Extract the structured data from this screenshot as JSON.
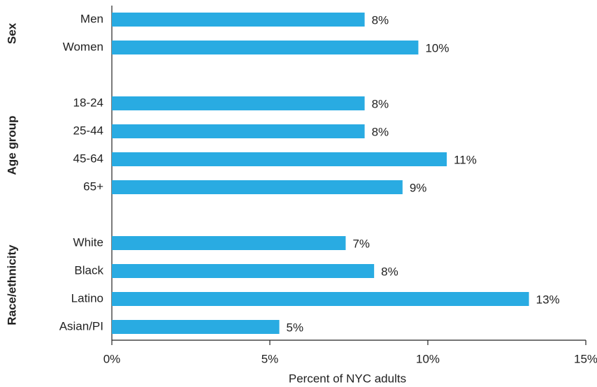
{
  "chart_data": {
    "type": "bar",
    "orientation": "horizontal",
    "color": "#29abe2",
    "x_label": "Percent of NYC adults",
    "xlim": [
      0,
      15
    ],
    "xticks": [
      {
        "value": 0,
        "label": "0%"
      },
      {
        "value": 5,
        "label": "5%"
      },
      {
        "value": 10,
        "label": "10%"
      },
      {
        "value": 15,
        "label": "15%"
      }
    ],
    "groups": [
      {
        "name": "Sex",
        "categories": [
          "Men",
          "Women"
        ],
        "values": [
          8.0,
          9.7
        ],
        "value_labels": [
          "8%",
          "10%"
        ]
      },
      {
        "name": "Age group",
        "categories": [
          "18-24",
          "25-44",
          "45-64",
          "65+"
        ],
        "values": [
          8.0,
          8.0,
          10.6,
          9.2
        ],
        "value_labels": [
          "8%",
          "8%",
          "11%",
          "9%"
        ]
      },
      {
        "name": "Race/ethnicity",
        "categories": [
          "White",
          "Black",
          "Latino",
          "Asian/PI"
        ],
        "values": [
          7.4,
          8.3,
          13.2,
          5.3
        ],
        "value_labels": [
          "7%",
          "8%",
          "13%",
          "5%"
        ]
      }
    ]
  }
}
